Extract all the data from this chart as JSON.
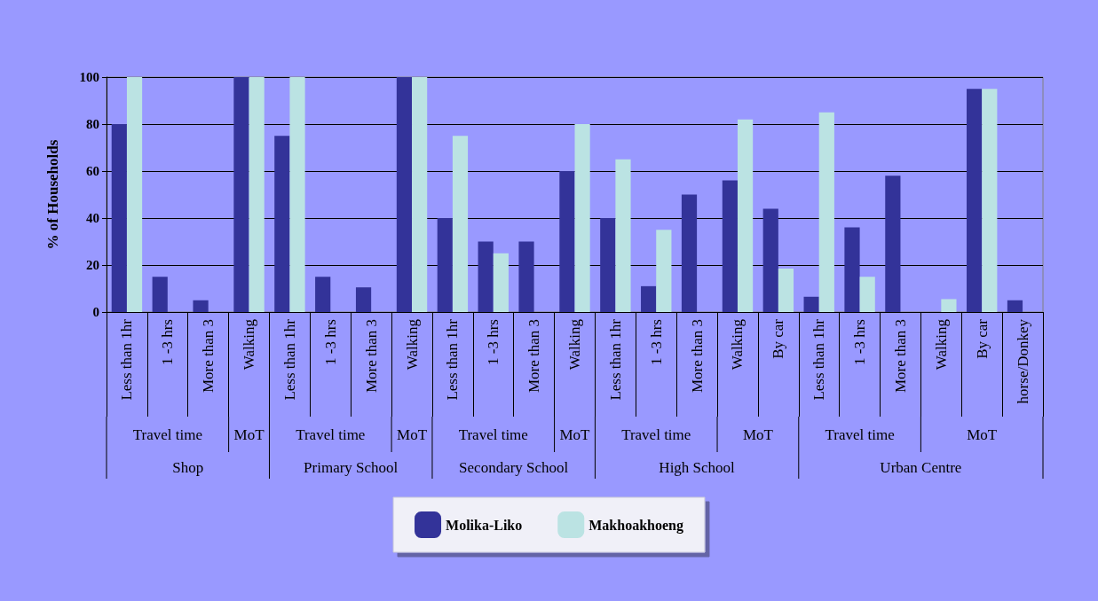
{
  "chart_data": {
    "type": "bar",
    "ylabel": "% of Households",
    "categories": [
      "Less than 1hr",
      "1 -3 hrs",
      "More than 3",
      "Walking",
      "Less than 1hr",
      "1 -3 hrs",
      "More than 3",
      "Walking",
      "Less than 1hr",
      "1 -3 hrs",
      "More than 3",
      "Walking",
      "Less than 1hr",
      "1 -3 hrs",
      "More than 3",
      "Walking",
      "By car",
      "Less than 1hr",
      "1 -3 hrs",
      "More than 3",
      "Walking",
      "By car",
      "horse/Donkey"
    ],
    "series": [
      {
        "name": "Molika-Liko",
        "color": "#333399",
        "values": [
          80,
          15,
          5,
          100,
          75,
          15,
          10.5,
          100,
          40,
          30,
          30,
          60,
          40,
          11,
          50,
          56,
          44,
          6.5,
          36,
          58,
          null,
          95,
          5
        ]
      },
      {
        "name": "Makhoakhoeng",
        "color": "#bbe3e3",
        "values": [
          100,
          null,
          null,
          100,
          100,
          null,
          null,
          100,
          75,
          25,
          null,
          80,
          65,
          35,
          null,
          82,
          18.5,
          85,
          15,
          null,
          5.5,
          95,
          null
        ]
      }
    ],
    "annotations": [
      "Travel time",
      "MoT",
      "Travel time",
      "MoT",
      "Travel time",
      "MoT",
      "Travel time",
      "MoT",
      "Travel time",
      "MoT",
      "Shop",
      "Primary School",
      "Secondary School",
      "High School",
      "Urban Centre"
    ],
    "ylim": [
      0,
      100
    ],
    "yticks": [
      0,
      20,
      40,
      60,
      80,
      100
    ],
    "grid": "y",
    "legend": "bottom"
  }
}
